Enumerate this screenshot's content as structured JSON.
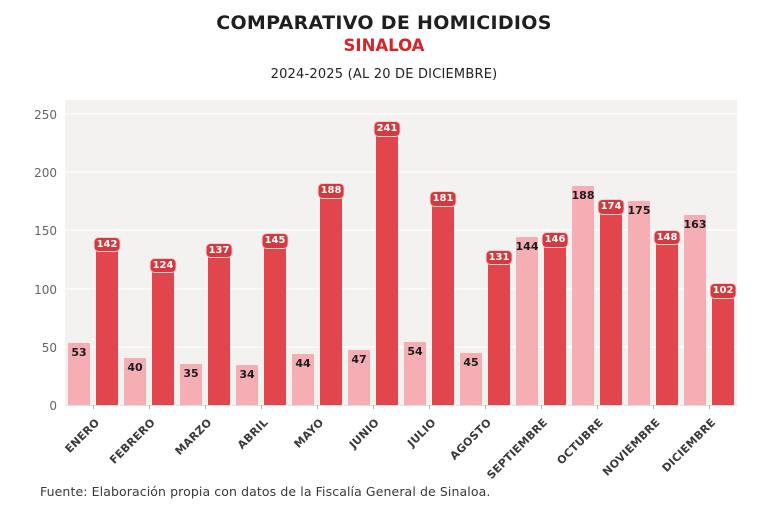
{
  "header": {
    "title": "COMPARATIVO DE HOMICIDIOS",
    "subtitle": "SINALOA",
    "period": "2024-2025 (AL 20 DE DICIEMBRE)"
  },
  "footer": {
    "source": "Fuente: Elaboración propia con datos de la Fiscalía General de Sinaloa."
  },
  "colors": {
    "accent_red": "#d8232b",
    "bar_2024": "#f6adb3",
    "bar_2025": "#e2464d",
    "label_pill_bg": "#d63840",
    "plot_background": "#f3f2f0",
    "gridline": "#fbfaf8"
  },
  "chart_data": {
    "type": "bar",
    "title": "COMPARATIVO DE HOMICIDIOS",
    "subtitle": "SINALOA",
    "period_note": "2024-2025 (AL 20 DE DICIEMBRE)",
    "categories": [
      "ENERO",
      "FEBRERO",
      "MARZO",
      "ABRIL",
      "MAYO",
      "JUNIO",
      "JULIO",
      "AGOSTO",
      "SEPTIEMBRE",
      "OCTUBRE",
      "NOVIEMBRE",
      "DICIEMBRE"
    ],
    "series": [
      {
        "name": "2024",
        "color": "#f6adb3",
        "label_style": "dark-text",
        "values": [
          53,
          40,
          35,
          34,
          44,
          47,
          54,
          45,
          144,
          188,
          175,
          163
        ]
      },
      {
        "name": "2025",
        "color": "#e2464d",
        "label_style": "white-pill",
        "values": [
          142,
          124,
          137,
          145,
          188,
          241,
          181,
          131,
          146,
          174,
          148,
          102
        ]
      }
    ],
    "ylabel": "",
    "xlabel": "",
    "ylim": [
      0,
      250
    ],
    "yticks": [
      0,
      50,
      100,
      150,
      200,
      250
    ],
    "grid": true,
    "legend_position": "none",
    "data_labels": true,
    "x_tick_rotation": -45
  }
}
